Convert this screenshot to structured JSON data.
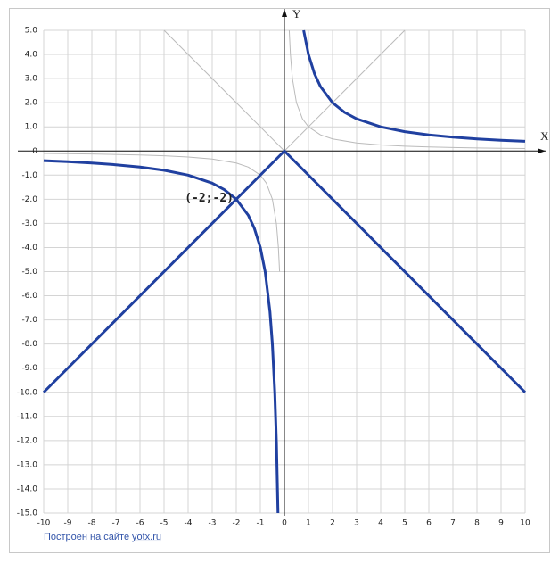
{
  "chart_data": {
    "type": "line",
    "x_label": "X",
    "y_label": "Y",
    "xlim": [
      -10,
      10
    ],
    "ylim": [
      -15,
      5
    ],
    "xticks": [
      -10,
      -9,
      -8,
      -7,
      -6,
      -5,
      -4,
      -3,
      -2,
      -1,
      0,
      1,
      2,
      3,
      4,
      5,
      6,
      7,
      8,
      9,
      10
    ],
    "yticks": [
      {
        "value": 5,
        "label": "5.0"
      },
      {
        "value": 4,
        "label": "4.0"
      },
      {
        "value": 3,
        "label": "3.0"
      },
      {
        "value": 2,
        "label": "2.0"
      },
      {
        "value": 1,
        "label": "1.0"
      },
      0,
      {
        "value": -1,
        "label": "-1.0"
      },
      {
        "value": -2,
        "label": "-2.0"
      },
      {
        "value": -3,
        "label": "-3.0"
      },
      {
        "value": -4,
        "label": "-4.0"
      },
      {
        "value": -5,
        "label": "-5.0"
      },
      {
        "value": -6,
        "label": "-6.0"
      },
      {
        "value": -7,
        "label": "-7.0"
      },
      {
        "value": -8,
        "label": "-8.0"
      },
      {
        "value": -9,
        "label": "-9.0"
      },
      {
        "value": -10,
        "label": "-10.0"
      },
      {
        "value": -11,
        "label": "-11.0"
      },
      {
        "value": -12,
        "label": "-12.0"
      },
      {
        "value": -13,
        "label": "-13.0"
      },
      {
        "value": -14,
        "label": "-14.0"
      },
      {
        "value": -15,
        "label": "-15.0"
      }
    ],
    "grid": true,
    "series": [
      {
        "color": "#bbbbbb",
        "width": 1,
        "x": [
          0.2,
          0.25,
          0.333,
          0.5,
          0.75,
          1,
          1.5,
          2,
          3,
          4,
          5,
          6,
          7,
          8,
          9,
          10
        ],
        "values": [
          5,
          4,
          3,
          2,
          1.333,
          1,
          0.667,
          0.5,
          0.333,
          0.25,
          0.2,
          0.167,
          0.143,
          0.125,
          0.111,
          0.1
        ]
      },
      {
        "color": "#bbbbbb",
        "width": 1,
        "x": [
          -10,
          -8,
          -6,
          -5,
          -4,
          -3,
          -2,
          -1.5,
          -1,
          -0.75,
          -0.5,
          -0.333,
          -0.25,
          -0.2
        ],
        "values": [
          -0.1,
          -0.125,
          -0.167,
          -0.2,
          -0.25,
          -0.333,
          -0.5,
          -0.667,
          -1,
          -1.333,
          -2,
          -3,
          -4,
          -5
        ]
      },
      {
        "color": "#bbbbbb",
        "width": 1,
        "x": [
          -5,
          0,
          5
        ],
        "values": [
          5,
          0,
          5
        ]
      },
      {
        "color": "#2040a0",
        "width": 3,
        "x": [
          -10,
          0,
          10
        ],
        "values": [
          -10,
          0,
          -10
        ]
      },
      {
        "color": "#2040a0",
        "width": 3,
        "x": [
          0.8,
          1,
          1.25,
          1.5,
          2,
          2.5,
          3,
          4,
          5,
          6,
          7,
          8,
          9,
          10
        ],
        "values": [
          5,
          4,
          3.2,
          2.667,
          2,
          1.6,
          1.333,
          1,
          0.8,
          0.667,
          0.571,
          0.5,
          0.444,
          0.4
        ]
      },
      {
        "color": "#2040a0",
        "width": 3,
        "x": [
          -10,
          -9,
          -8,
          -7,
          -6,
          -5,
          -4,
          -3,
          -2.5,
          -2,
          -1.5,
          -1.25,
          -1,
          -0.8,
          -0.6,
          -0.5,
          -0.4,
          -0.33,
          -0.267
        ],
        "values": [
          -0.4,
          -0.444,
          -0.5,
          -0.571,
          -0.667,
          -0.8,
          -1,
          -1.333,
          -1.6,
          -2,
          -2.667,
          -3.2,
          -4,
          -5,
          -6.667,
          -8,
          -10,
          -12.12,
          -15
        ]
      }
    ],
    "annotations": [
      {
        "text": "(-2;-2)",
        "x": -2,
        "y": -2
      }
    ],
    "footer": {
      "text": "Построен на сайте",
      "link": "yotx.ru"
    }
  }
}
